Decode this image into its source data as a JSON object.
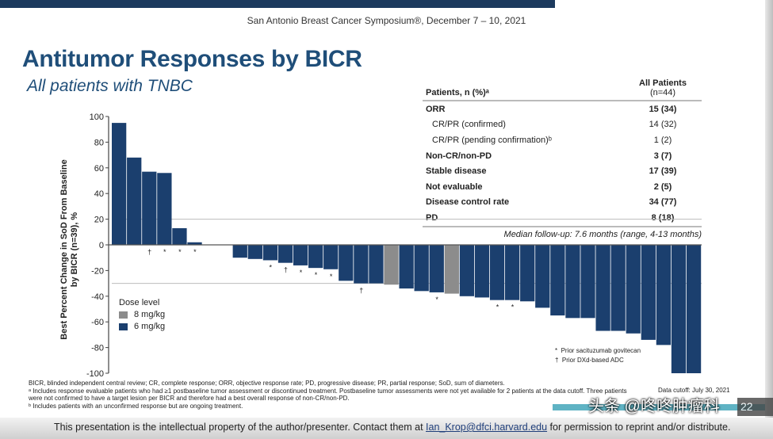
{
  "header": {
    "conference": "San Antonio Breast Cancer Symposium®, December 7 – 10, 2021"
  },
  "title": "Antitumor Responses by BICR",
  "subtitle": "All patients with TNBC",
  "table": {
    "col1": "Patients, n (%)ᵃ",
    "col2_line1": "All Patients",
    "col2_line2": "(n=44)",
    "rows": [
      {
        "label": "ORR",
        "value": "15 (34)",
        "bold": true
      },
      {
        "label": "CR/PR (confirmed)",
        "value": "14 (32)",
        "bold": false
      },
      {
        "label": "CR/PR (pending confirmation)ᵇ",
        "value": "1 (2)",
        "bold": false
      },
      {
        "label": "Non-CR/non-PD",
        "value": "3 (7)",
        "bold": true
      },
      {
        "label": "Stable disease",
        "value": "17 (39)",
        "bold": true
      },
      {
        "label": "Not evaluable",
        "value": "2 (5)",
        "bold": true
      },
      {
        "label": "Disease control rate",
        "value": "34 (77)",
        "bold": true
      },
      {
        "label": "PD",
        "value": "8 (18)",
        "bold": true
      }
    ]
  },
  "followup": "Median follow-up: 7.6 months (range, 4-13 months)",
  "chart_data": {
    "type": "bar",
    "subtype": "waterfall",
    "ylabel_line1": "Best Percent Change in SoD From Baseline",
    "ylabel_line2": "by BICR (n=39), %",
    "ylim": [
      -100,
      100
    ],
    "yticks": [
      "100",
      "80",
      "60",
      "40",
      "20",
      "0",
      "-20",
      "-40",
      "-60",
      "-80",
      "-100"
    ],
    "reference_lines": [
      20,
      -30
    ],
    "colors": {
      "8 mg/kg": "#8c8c8c",
      "6 mg/kg": "#1b3f6e"
    },
    "legend_title": "Dose level",
    "legend": [
      "8 mg/kg",
      "6 mg/kg"
    ],
    "legend_placement": "bottom-left",
    "values": [
      95,
      68,
      57,
      56,
      13,
      2,
      0,
      0,
      -10,
      -11,
      -12,
      -14,
      -16,
      -18,
      -19,
      -28,
      -30,
      -30,
      -31,
      -34,
      -36,
      -37,
      -38,
      -40,
      -41,
      -43,
      -43,
      -44,
      -49,
      -55,
      -57,
      -57,
      -67,
      -67,
      -69,
      -74,
      -78,
      -100,
      -100
    ],
    "dose": [
      "6",
      "6",
      "6",
      "6",
      "6",
      "6",
      "6",
      "6",
      "6",
      "6",
      "6",
      "6",
      "6",
      "6",
      "6",
      "6",
      "6",
      "6",
      "8",
      "6",
      "6",
      "6",
      "8",
      "6",
      "6",
      "6",
      "6",
      "6",
      "6",
      "6",
      "6",
      "6",
      "6",
      "6",
      "6",
      "6",
      "6",
      "6",
      "6"
    ],
    "markers": {
      "2": "†",
      "3": "*",
      "4": "*",
      "5": "*",
      "10": "*",
      "11": "†",
      "12": "*",
      "13": "*",
      "14": "*",
      "16": "†",
      "21": "*",
      "25": "*",
      "26": "*"
    },
    "marker_legend": [
      {
        "symbol": "*",
        "label": "Prior sacituzumab govitecan"
      },
      {
        "symbol": "†",
        "label": "Prior DXd-based ADC"
      }
    ]
  },
  "footnotes": [
    "BICR, blinded independent central review; CR, complete response; ORR, objective response rate; PD, progressive disease; PR, partial response; SoD, sum of diameters.",
    "ᵃ Includes response evaluable patients who had ≥1 postbaseline tumor assessment or discontinued treatment. Postbaseline tumor assessments were not yet available for 2 patients at the data cutoff. Three patients were not confirmed to have a target lesion per BICR and therefore had a best overall response of non-CR/non-PD.",
    "ᵇ Includes patients with an unconfirmed response but are ongoing treatment."
  ],
  "data_cutoff": "Data cutoff: July 30, 2021",
  "notice": {
    "before": "This presentation is the intellectual property of the author/presenter. Contact them at ",
    "email": "Ian_Krop@dfci.harvard.edu",
    "after": " for permission to reprint and/or distribute."
  },
  "watermark": "头条 @咚咚肿瘤科",
  "watermark_badge": "22"
}
